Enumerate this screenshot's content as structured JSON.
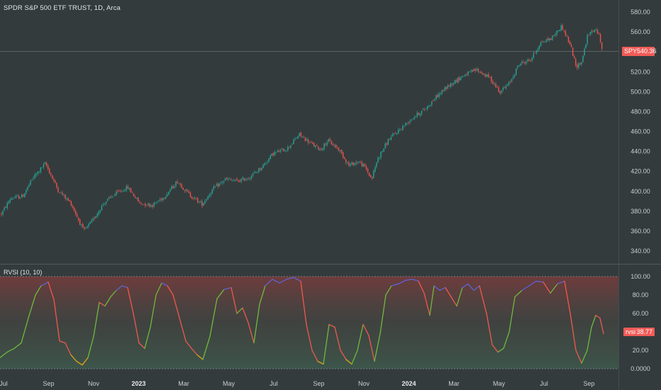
{
  "chart_data": [
    {
      "type": "candlestick",
      "title": "SPDR S&P 500 ETF TRUST, 1D, Arca",
      "symbol": "SPY",
      "last_price": "540.36",
      "ylim": [
        330,
        590
      ],
      "y_ticks": [
        "580.00",
        "560.00",
        "540.00",
        "520.00",
        "500.00",
        "480.00",
        "460.00",
        "440.00",
        "420.00",
        "400.00",
        "380.00",
        "360.00",
        "340.00"
      ],
      "x_ticks": [
        "Jul",
        "Sep",
        "Nov",
        "2023",
        "Mar",
        "May",
        "Jul",
        "Sep",
        "Nov",
        "2024",
        "Mar",
        "May",
        "Jul",
        "Sep"
      ],
      "x_ticks_bold": [
        "2023",
        "2024"
      ],
      "trend": [
        {
          "x": 0,
          "y": 375
        },
        {
          "x": 15,
          "y": 393
        },
        {
          "x": 32,
          "y": 395
        },
        {
          "x": 46,
          "y": 413
        },
        {
          "x": 64,
          "y": 428
        },
        {
          "x": 82,
          "y": 401
        },
        {
          "x": 100,
          "y": 388
        },
        {
          "x": 118,
          "y": 360
        },
        {
          "x": 130,
          "y": 370
        },
        {
          "x": 146,
          "y": 388
        },
        {
          "x": 162,
          "y": 397
        },
        {
          "x": 180,
          "y": 404
        },
        {
          "x": 197,
          "y": 388
        },
        {
          "x": 215,
          "y": 386
        },
        {
          "x": 232,
          "y": 395
        },
        {
          "x": 250,
          "y": 410
        },
        {
          "x": 268,
          "y": 396
        },
        {
          "x": 285,
          "y": 387
        },
        {
          "x": 300,
          "y": 402
        },
        {
          "x": 318,
          "y": 412
        },
        {
          "x": 335,
          "y": 410
        },
        {
          "x": 352,
          "y": 414
        },
        {
          "x": 370,
          "y": 425
        },
        {
          "x": 385,
          "y": 438
        },
        {
          "x": 405,
          "y": 443
        },
        {
          "x": 422,
          "y": 457
        },
        {
          "x": 440,
          "y": 447
        },
        {
          "x": 452,
          "y": 442
        },
        {
          "x": 462,
          "y": 451
        },
        {
          "x": 478,
          "y": 442
        },
        {
          "x": 492,
          "y": 426
        },
        {
          "x": 505,
          "y": 430
        },
        {
          "x": 515,
          "y": 424
        },
        {
          "x": 524,
          "y": 412
        },
        {
          "x": 532,
          "y": 432
        },
        {
          "x": 548,
          "y": 452
        },
        {
          "x": 565,
          "y": 463
        },
        {
          "x": 582,
          "y": 474
        },
        {
          "x": 600,
          "y": 483
        },
        {
          "x": 618,
          "y": 497
        },
        {
          "x": 636,
          "y": 508
        },
        {
          "x": 655,
          "y": 517
        },
        {
          "x": 672,
          "y": 522
        },
        {
          "x": 690,
          "y": 514
        },
        {
          "x": 705,
          "y": 500
        },
        {
          "x": 718,
          "y": 508
        },
        {
          "x": 732,
          "y": 528
        },
        {
          "x": 748,
          "y": 532
        },
        {
          "x": 762,
          "y": 549
        },
        {
          "x": 778,
          "y": 554
        },
        {
          "x": 792,
          "y": 566
        },
        {
          "x": 805,
          "y": 545
        },
        {
          "x": 812,
          "y": 525
        },
        {
          "x": 820,
          "y": 530
        },
        {
          "x": 828,
          "y": 555
        },
        {
          "x": 836,
          "y": 562
        },
        {
          "x": 843,
          "y": 560
        },
        {
          "x": 850,
          "y": 541
        }
      ]
    },
    {
      "type": "line",
      "title": "RVSI (10, 10)",
      "series_label": "rvsi",
      "last_value": "38.77",
      "ylim": [
        0,
        100
      ],
      "y_ticks": [
        "100.00",
        "80.00",
        "60.00",
        "40.00",
        "20.00",
        "0.0000"
      ],
      "colors": {
        "up": "#70b83c",
        "down": "#f0584d",
        "overbought": "#5a64d4",
        "oversold": "#e8a317"
      },
      "points": [
        {
          "x": 0,
          "y": 12
        },
        {
          "x": 10,
          "y": 18
        },
        {
          "x": 20,
          "y": 22
        },
        {
          "x": 30,
          "y": 28
        },
        {
          "x": 40,
          "y": 55
        },
        {
          "x": 50,
          "y": 80
        },
        {
          "x": 58,
          "y": 90
        },
        {
          "x": 68,
          "y": 94
        },
        {
          "x": 76,
          "y": 75
        },
        {
          "x": 84,
          "y": 30
        },
        {
          "x": 92,
          "y": 28
        },
        {
          "x": 100,
          "y": 15
        },
        {
          "x": 108,
          "y": 8
        },
        {
          "x": 116,
          "y": 4
        },
        {
          "x": 124,
          "y": 12
        },
        {
          "x": 132,
          "y": 35
        },
        {
          "x": 140,
          "y": 72
        },
        {
          "x": 148,
          "y": 68
        },
        {
          "x": 156,
          "y": 78
        },
        {
          "x": 164,
          "y": 85
        },
        {
          "x": 172,
          "y": 90
        },
        {
          "x": 180,
          "y": 88
        },
        {
          "x": 188,
          "y": 60
        },
        {
          "x": 196,
          "y": 28
        },
        {
          "x": 204,
          "y": 22
        },
        {
          "x": 212,
          "y": 45
        },
        {
          "x": 220,
          "y": 80
        },
        {
          "x": 228,
          "y": 93
        },
        {
          "x": 236,
          "y": 90
        },
        {
          "x": 244,
          "y": 80
        },
        {
          "x": 252,
          "y": 58
        },
        {
          "x": 262,
          "y": 30
        },
        {
          "x": 270,
          "y": 22
        },
        {
          "x": 278,
          "y": 15
        },
        {
          "x": 286,
          "y": 10
        },
        {
          "x": 296,
          "y": 35
        },
        {
          "x": 306,
          "y": 76
        },
        {
          "x": 316,
          "y": 86
        },
        {
          "x": 326,
          "y": 88
        },
        {
          "x": 334,
          "y": 60
        },
        {
          "x": 342,
          "y": 66
        },
        {
          "x": 350,
          "y": 50
        },
        {
          "x": 358,
          "y": 28
        },
        {
          "x": 366,
          "y": 70
        },
        {
          "x": 374,
          "y": 90
        },
        {
          "x": 384,
          "y": 97
        },
        {
          "x": 394,
          "y": 93
        },
        {
          "x": 404,
          "y": 97
        },
        {
          "x": 414,
          "y": 99
        },
        {
          "x": 424,
          "y": 95
        },
        {
          "x": 432,
          "y": 48
        },
        {
          "x": 440,
          "y": 20
        },
        {
          "x": 448,
          "y": 8
        },
        {
          "x": 456,
          "y": 5
        },
        {
          "x": 464,
          "y": 48
        },
        {
          "x": 472,
          "y": 45
        },
        {
          "x": 480,
          "y": 20
        },
        {
          "x": 488,
          "y": 10
        },
        {
          "x": 496,
          "y": 5
        },
        {
          "x": 504,
          "y": 20
        },
        {
          "x": 512,
          "y": 48
        },
        {
          "x": 520,
          "y": 36
        },
        {
          "x": 528,
          "y": 8
        },
        {
          "x": 536,
          "y": 38
        },
        {
          "x": 544,
          "y": 80
        },
        {
          "x": 552,
          "y": 90
        },
        {
          "x": 562,
          "y": 92
        },
        {
          "x": 572,
          "y": 96
        },
        {
          "x": 582,
          "y": 97
        },
        {
          "x": 590,
          "y": 95
        },
        {
          "x": 598,
          "y": 82
        },
        {
          "x": 606,
          "y": 58
        },
        {
          "x": 612,
          "y": 90
        },
        {
          "x": 620,
          "y": 85
        },
        {
          "x": 628,
          "y": 88
        },
        {
          "x": 636,
          "y": 78
        },
        {
          "x": 644,
          "y": 68
        },
        {
          "x": 652,
          "y": 88
        },
        {
          "x": 660,
          "y": 92
        },
        {
          "x": 668,
          "y": 85
        },
        {
          "x": 676,
          "y": 90
        },
        {
          "x": 686,
          "y": 60
        },
        {
          "x": 694,
          "y": 26
        },
        {
          "x": 702,
          "y": 18
        },
        {
          "x": 710,
          "y": 22
        },
        {
          "x": 718,
          "y": 40
        },
        {
          "x": 726,
          "y": 78
        },
        {
          "x": 736,
          "y": 85
        },
        {
          "x": 746,
          "y": 90
        },
        {
          "x": 756,
          "y": 95
        },
        {
          "x": 766,
          "y": 94
        },
        {
          "x": 776,
          "y": 82
        },
        {
          "x": 786,
          "y": 92
        },
        {
          "x": 796,
          "y": 95
        },
        {
          "x": 804,
          "y": 60
        },
        {
          "x": 812,
          "y": 20
        },
        {
          "x": 820,
          "y": 6
        },
        {
          "x": 828,
          "y": 20
        },
        {
          "x": 834,
          "y": 45
        },
        {
          "x": 840,
          "y": 58
        },
        {
          "x": 846,
          "y": 55
        },
        {
          "x": 851,
          "y": 38
        }
      ]
    }
  ]
}
